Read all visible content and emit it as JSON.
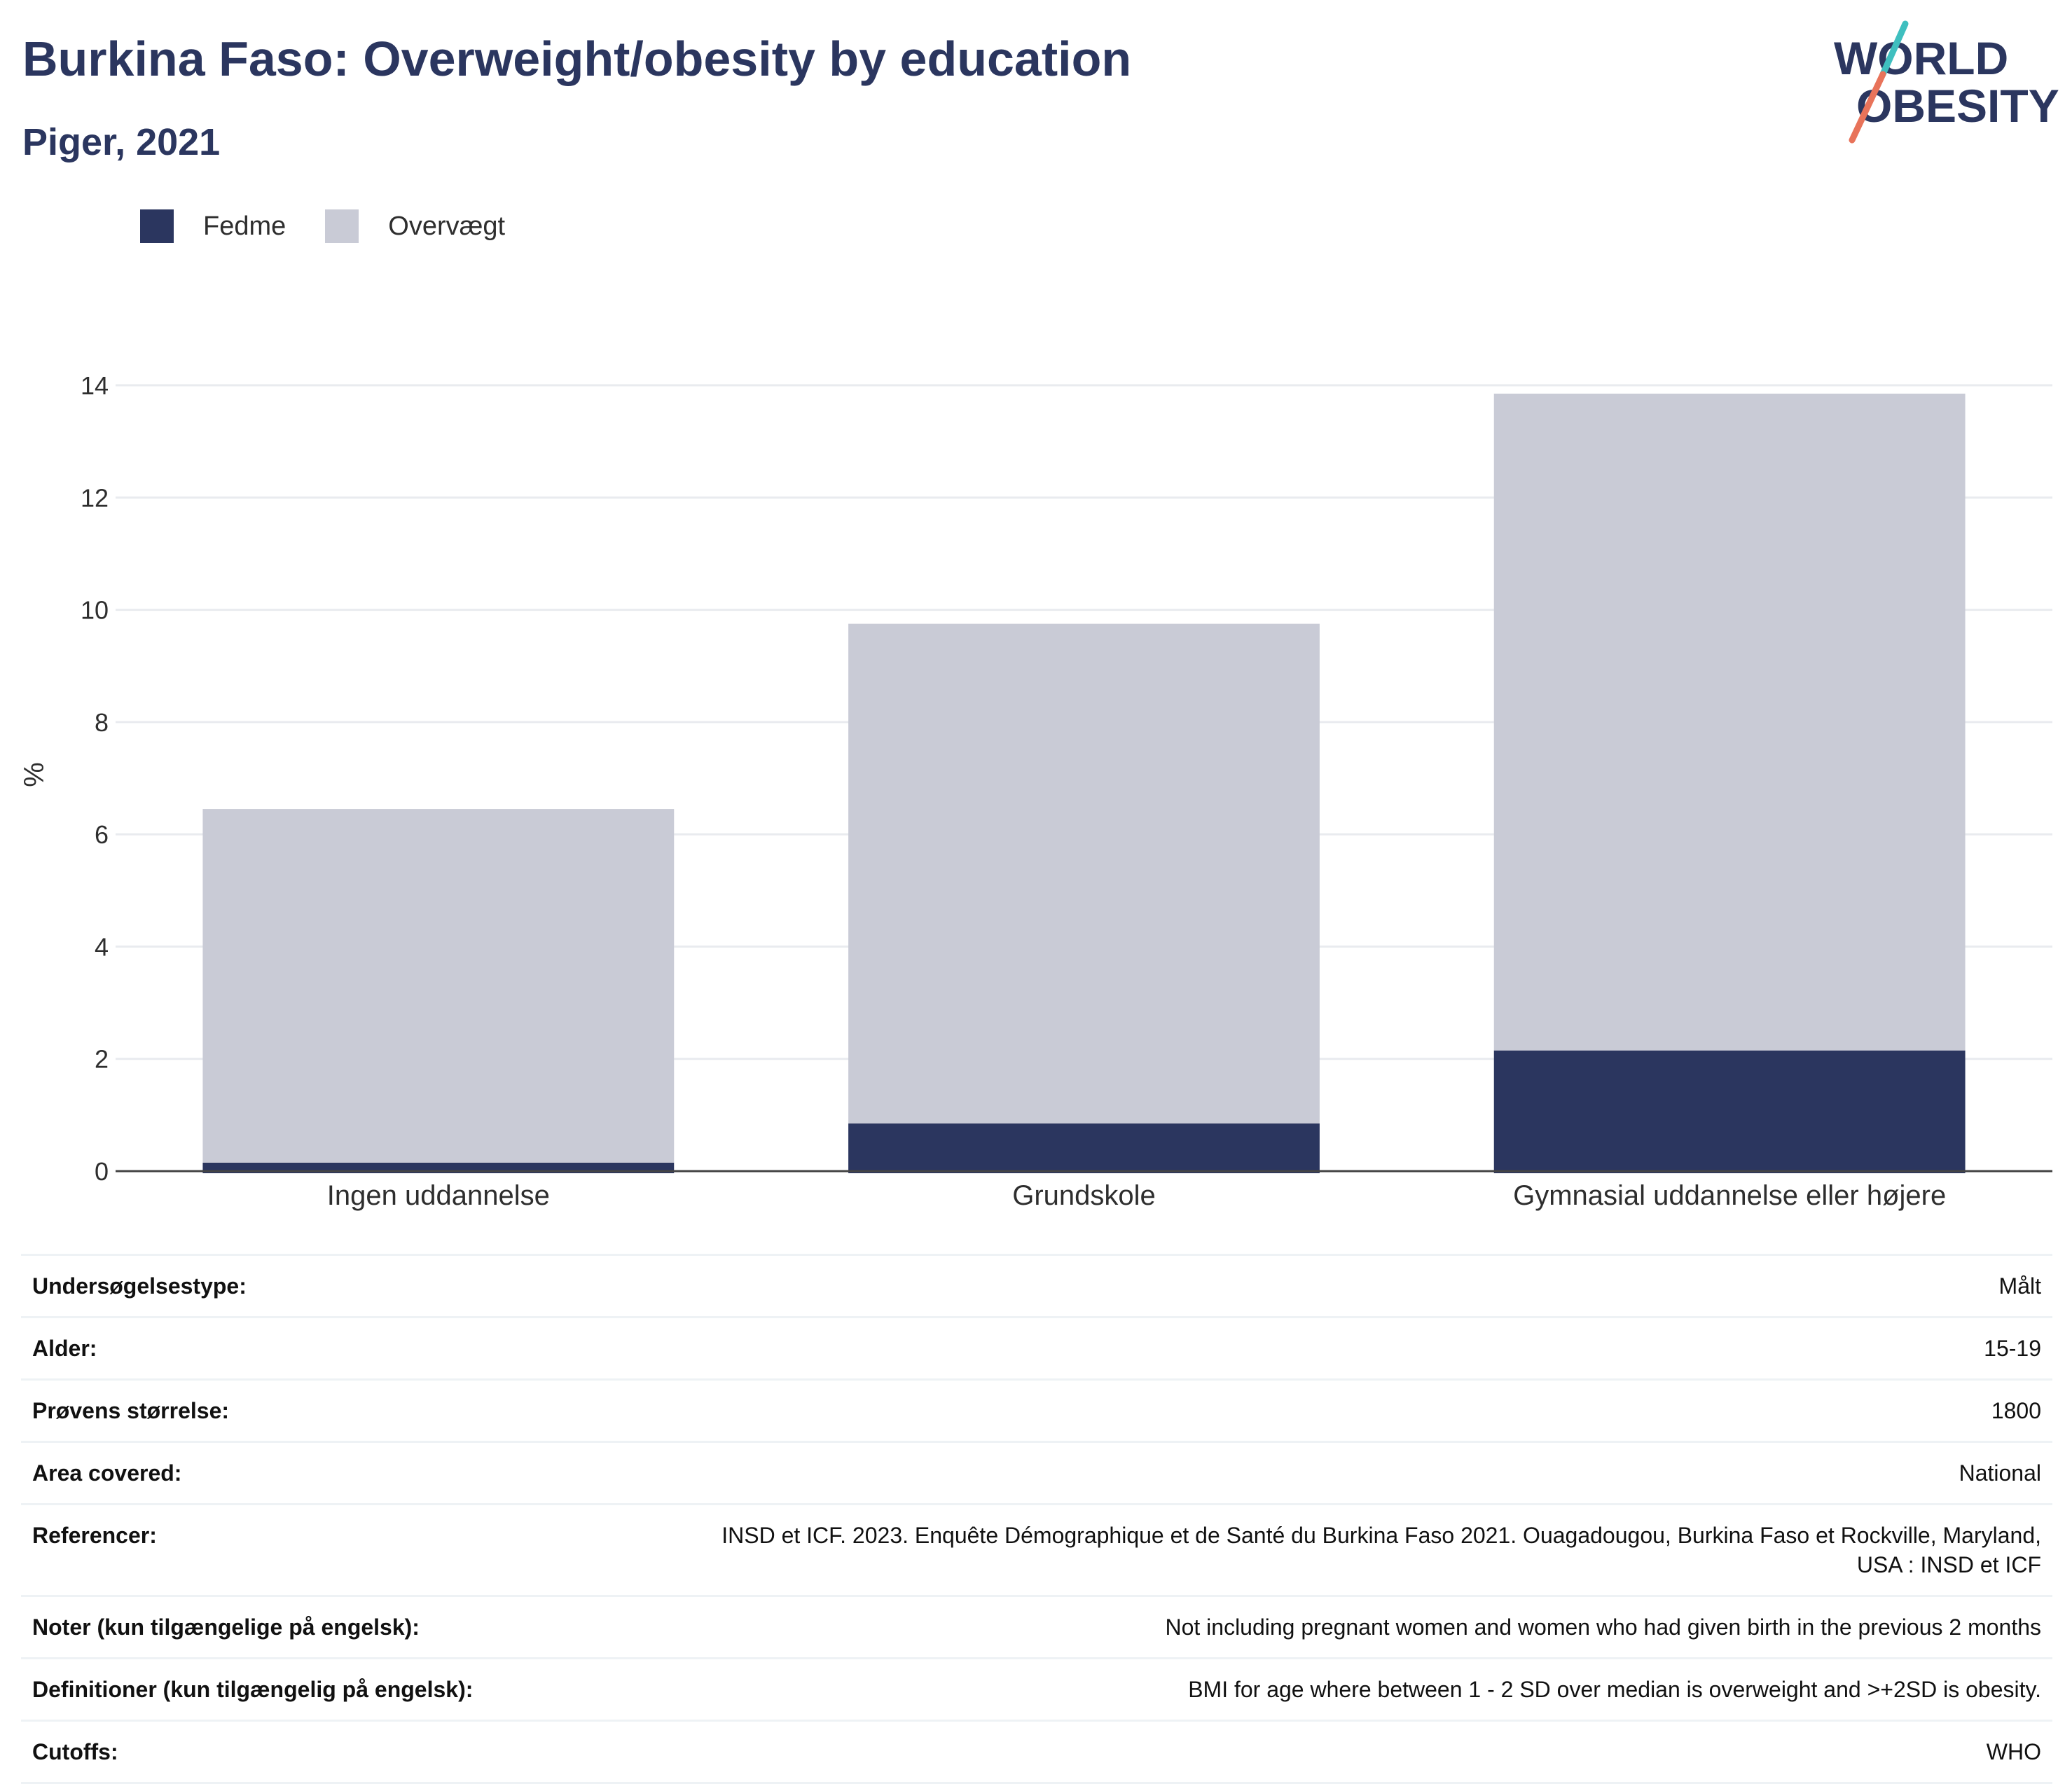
{
  "header": {
    "title": "Burkina Faso: Overweight/obesity by education",
    "subtitle": "Piger, 2021"
  },
  "logo": {
    "line1": "WORLD",
    "line2": "OBESITY"
  },
  "colors": {
    "obesity": "#2b365f",
    "overweight": "#c9cbd6",
    "logo_teal": "#3fbfbf",
    "logo_coral": "#e8735a",
    "grid": "#e9ebef",
    "axis": "#444444"
  },
  "legend": [
    {
      "label": "Fedme",
      "color": "#2b365f"
    },
    {
      "label": "Overvægt",
      "color": "#c9cbd6"
    }
  ],
  "chart_data": {
    "type": "bar",
    "stacked": true,
    "categories": [
      "Ingen uddannelse",
      "Grundskole",
      "Gymnasial uddannelse eller højere"
    ],
    "series": [
      {
        "name": "Fedme",
        "values": [
          0.15,
          0.85,
          2.15
        ]
      },
      {
        "name": "Overvægt",
        "values": [
          6.3,
          8.9,
          11.7
        ]
      }
    ],
    "ylabel": "%",
    "xlabel": "",
    "ylim": [
      0,
      14
    ],
    "yticks": [
      0,
      2,
      4,
      6,
      8,
      10,
      12,
      14
    ],
    "grid": true,
    "legend_position": "top-left"
  },
  "info": [
    {
      "key": "Undersøgelsestype:",
      "value": "Målt"
    },
    {
      "key": "Alder:",
      "value": "15-19"
    },
    {
      "key": "Prøvens størrelse:",
      "value": "1800"
    },
    {
      "key": "Area covered:",
      "value": "National"
    },
    {
      "key": "Referencer:",
      "value": "INSD et ICF. 2023. Enquête Démographique et de Santé du Burkina Faso 2021. Ouagadougou, Burkina Faso et Rockville, Maryland, USA : INSD et ICF"
    },
    {
      "key": "Noter (kun tilgængelige på engelsk):",
      "value": "Not including pregnant women and women who had given birth in the previous 2 months"
    },
    {
      "key": "Definitioner (kun tilgængelig på engelsk):",
      "value": "BMI for age where between 1 - 2 SD over median is overweight and >+2SD is obesity."
    },
    {
      "key": "Cutoffs:",
      "value": "WHO"
    }
  ]
}
